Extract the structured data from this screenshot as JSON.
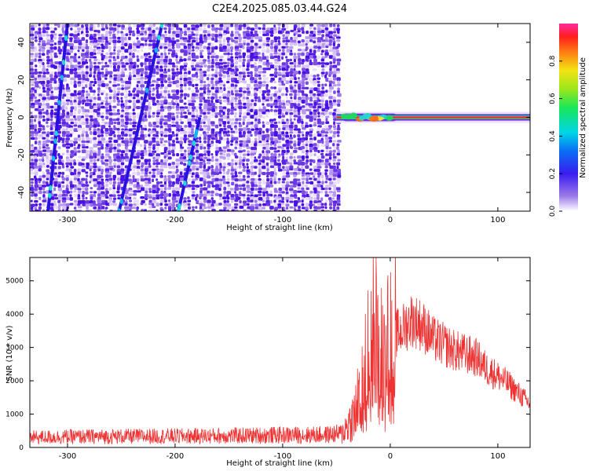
{
  "title": "C2E4.2025.085.03.44.G24",
  "chart_data": [
    {
      "type": "heatmap",
      "xlabel": "Height of straight line (km)",
      "ylabel": "Frequency (Hz)",
      "xlim": [
        -335,
        130
      ],
      "ylim": [
        -50,
        50
      ],
      "xticks": [
        -300,
        -200,
        -100,
        0,
        100
      ],
      "yticks": [
        -40,
        -20,
        0,
        20,
        40
      ],
      "noise_region_x": [
        -335,
        -50
      ],
      "signal_line": {
        "freq": 0,
        "x_start": -50,
        "x_end": 130
      },
      "streaks": [
        {
          "x": [
            -318,
            -300
          ],
          "y": [
            -50,
            50
          ]
        },
        {
          "x": [
            -252,
            -212
          ],
          "y": [
            -50,
            50
          ]
        },
        {
          "x": [
            -197,
            -177
          ],
          "y": [
            -50,
            0
          ]
        }
      ],
      "colorbar": {
        "label": "Normalized spectral amplitude",
        "range": [
          0,
          1
        ],
        "ticks": [
          "0.0",
          "0.2",
          "0.4",
          "0.6",
          "0.8"
        ]
      }
    },
    {
      "type": "line",
      "xlabel": "Height of straight line (km)",
      "ylabel": "SNR (10 * v/v)",
      "xlim": [
        -335,
        130
      ],
      "ylim": [
        0,
        5700
      ],
      "xticks": [
        -300,
        -200,
        -100,
        0,
        100
      ],
      "yticks": [
        0,
        1000,
        2000,
        3000,
        4000,
        5000
      ],
      "color": "#ee3333",
      "series": [
        {
          "x": [
            -335,
            -300,
            -250,
            -200,
            -150,
            -100,
            -60,
            -45,
            -35,
            -25,
            -15,
            -5,
            0,
            10,
            20,
            30,
            40,
            60,
            80,
            90,
            100,
            110,
            120,
            130
          ],
          "y": [
            300,
            320,
            330,
            340,
            350,
            370,
            380,
            420,
            900,
            2000,
            3500,
            2300,
            3300,
            3500,
            3850,
            3650,
            3250,
            2900,
            2700,
            2350,
            2150,
            1900,
            1600,
            1300
          ]
        }
      ]
    }
  ]
}
